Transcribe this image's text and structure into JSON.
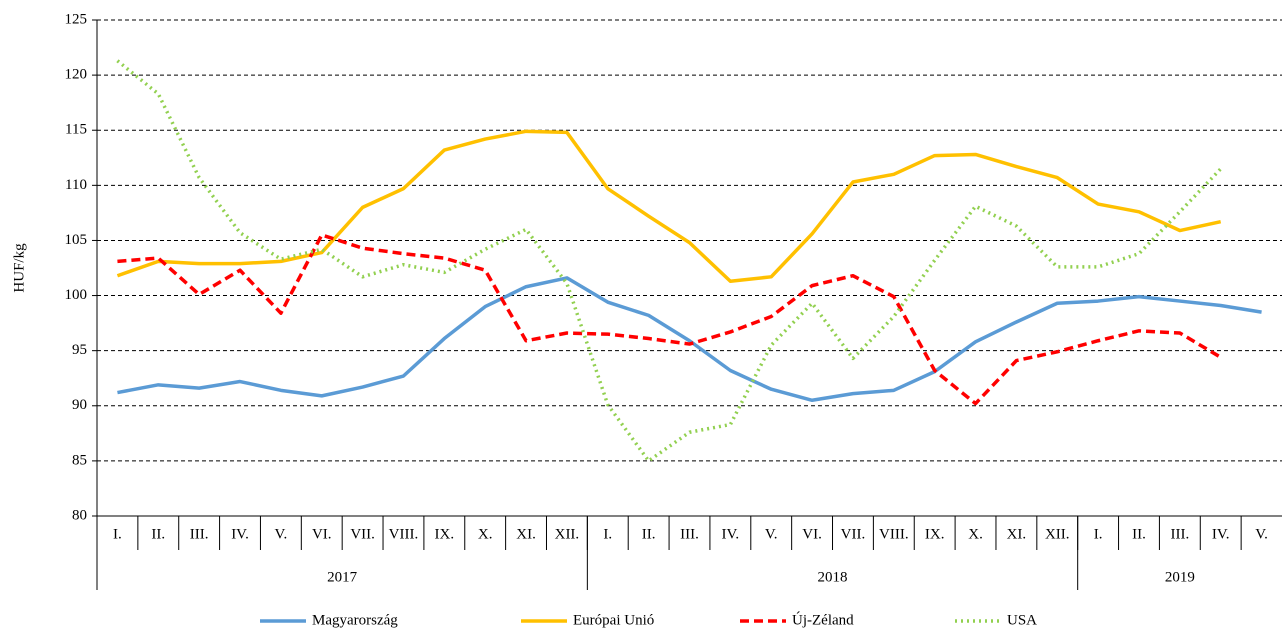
{
  "chart_data": {
    "type": "line",
    "y_label": "HUF/kg",
    "groups": [
      {
        "name": "2017",
        "categories": [
          "I.",
          "II.",
          "III.",
          "IV.",
          "V.",
          "VI.",
          "VII.",
          "VIII.",
          "IX.",
          "X.",
          "XI.",
          "XII."
        ]
      },
      {
        "name": "2018",
        "categories": [
          "I.",
          "II.",
          "III.",
          "IV.",
          "V.",
          "VI.",
          "VII.",
          "VIII.",
          "IX.",
          "X.",
          "XI.",
          "XII."
        ]
      },
      {
        "name": "2019",
        "categories": [
          "I.",
          "II.",
          "III.",
          "IV.",
          "V."
        ]
      }
    ],
    "series": [
      {
        "name": "Magyarország",
        "color": "#5b9bd5",
        "dash": "solid",
        "values": [
          91.2,
          91.9,
          91.6,
          92.2,
          91.4,
          90.9,
          91.7,
          92.7,
          96.1,
          99.0,
          100.8,
          101.6,
          99.4,
          98.2,
          95.9,
          93.2,
          91.5,
          90.5,
          91.1,
          91.4,
          93.1,
          95.8,
          97.6,
          99.3,
          99.5,
          99.9,
          99.5,
          99.1,
          98.5
        ]
      },
      {
        "name": "Európai Unió",
        "color": "#ffc000",
        "dash": "solid",
        "values": [
          101.8,
          103.1,
          102.9,
          102.9,
          103.1,
          103.9,
          108.0,
          109.7,
          113.2,
          114.2,
          114.9,
          114.8,
          109.7,
          107.2,
          104.8,
          101.3,
          101.7,
          105.6,
          110.3,
          111.0,
          112.7,
          112.8,
          111.7,
          110.7,
          108.3,
          107.6,
          105.9,
          106.7,
          null
        ]
      },
      {
        "name": "Új-Zéland",
        "color": "#ff0000",
        "dash": "dashed",
        "values": [
          103.1,
          103.4,
          100.1,
          102.3,
          98.4,
          105.5,
          104.3,
          103.8,
          103.4,
          102.3,
          95.9,
          96.6,
          96.5,
          96.1,
          95.6,
          96.7,
          98.1,
          100.9,
          101.8,
          99.9,
          93.2,
          90.2,
          94.1,
          94.9,
          95.9,
          96.8,
          96.6,
          94.4,
          null
        ]
      },
      {
        "name": "USA",
        "color": "#92d050",
        "dash": "dotted",
        "values": [
          121.3,
          118.3,
          110.7,
          105.7,
          103.3,
          104.2,
          101.7,
          102.8,
          102.1,
          104.2,
          106.0,
          101.1,
          90.1,
          85.0,
          87.6,
          88.3,
          95.5,
          99.3,
          94.3,
          98.1,
          103.2,
          108.1,
          106.3,
          102.6,
          102.6,
          103.8,
          107.6,
          111.5,
          null
        ]
      }
    ],
    "ylim": [
      80,
      125
    ],
    "yticks": [
      80,
      85,
      90,
      95,
      100,
      105,
      110,
      115,
      120,
      125
    ],
    "grid": true,
    "legend": "bottom"
  }
}
